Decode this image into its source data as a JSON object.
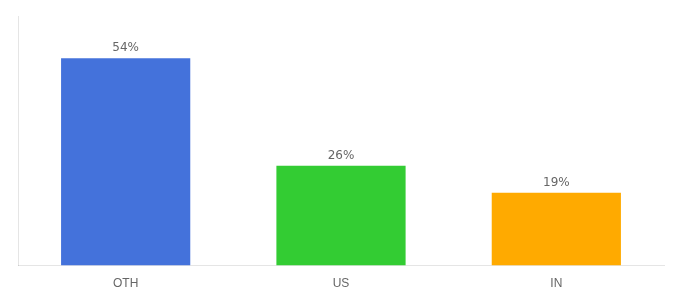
{
  "chart_data": {
    "type": "bar",
    "categories": [
      "OTH",
      "US",
      "IN"
    ],
    "values": [
      54,
      26,
      19
    ],
    "value_labels": [
      "54%",
      "26%",
      "19%"
    ],
    "colors": [
      "#4472db",
      "#33cc33",
      "#ffaa00"
    ],
    "ylim": [
      0,
      65
    ],
    "data_labels": true,
    "tick_labels": "x",
    "grid": false,
    "legend": false
  }
}
